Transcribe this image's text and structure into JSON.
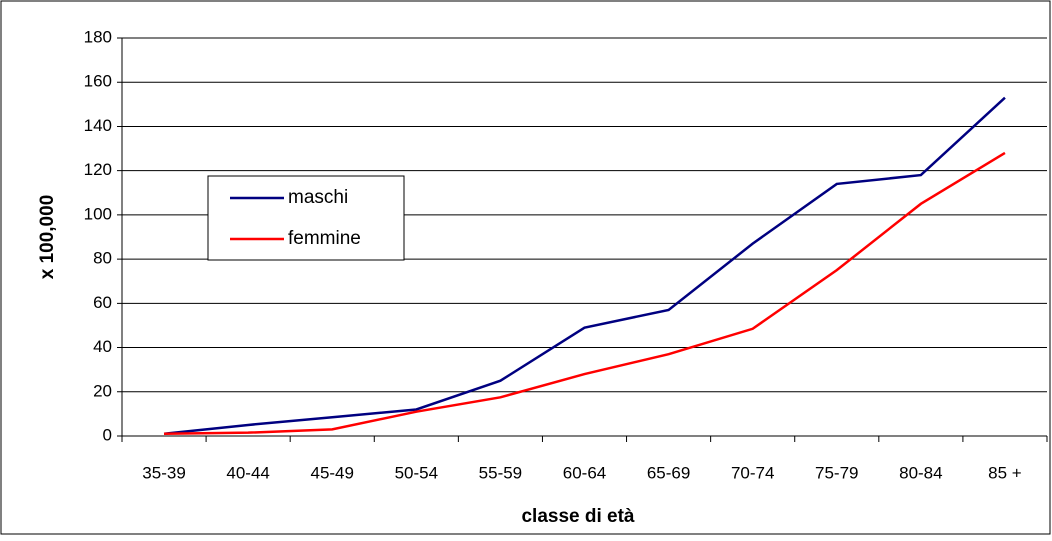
{
  "chart_data": {
    "type": "line",
    "x_label": "classe di età",
    "y_label": "x 100,000",
    "categories": [
      "35-39",
      "40-44",
      "45-49",
      "50-54",
      "55-59",
      "60-64",
      "65-69",
      "70-74",
      "75-79",
      "80-84",
      "85 +"
    ],
    "series": [
      {
        "name": "maschi",
        "color": "#000080",
        "values": [
          1,
          5,
          8.5,
          12,
          25,
          49,
          57,
          87,
          114,
          118,
          153
        ]
      },
      {
        "name": "femmine",
        "color": "#ff0000",
        "values": [
          1,
          1.5,
          3,
          11,
          17.5,
          28,
          37,
          48.5,
          75,
          105,
          128
        ]
      }
    ],
    "ylim": [
      0,
      180
    ],
    "yticks": [
      0,
      20,
      40,
      60,
      80,
      100,
      120,
      140,
      160,
      180
    ],
    "grid": true
  }
}
